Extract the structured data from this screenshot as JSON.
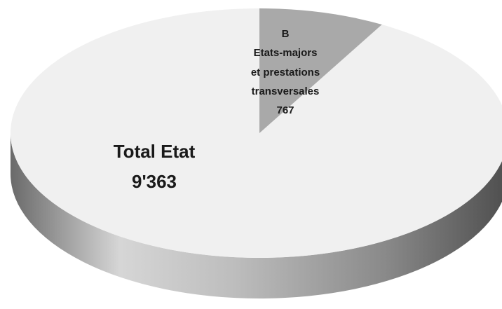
{
  "chart_data": {
    "type": "pie",
    "title": "",
    "style": "3d",
    "total_label": {
      "name": "Total Etat",
      "value": "9'363"
    },
    "slices": [
      {
        "code": "B",
        "name_line1": "Etats-majors",
        "name_line2": "et prestations",
        "name_line3": "transversales",
        "value": 767,
        "value_label": "767",
        "color": "#a9a9a9"
      },
      {
        "name": "Total Etat",
        "value": 8596,
        "color": "#f0f0f0"
      }
    ],
    "colors": {
      "top_face": "#f0f0f0",
      "highlight_slice": "#a9a9a9",
      "side_dark": "#5e5e5e",
      "side_light": "#cfcfcf"
    }
  }
}
